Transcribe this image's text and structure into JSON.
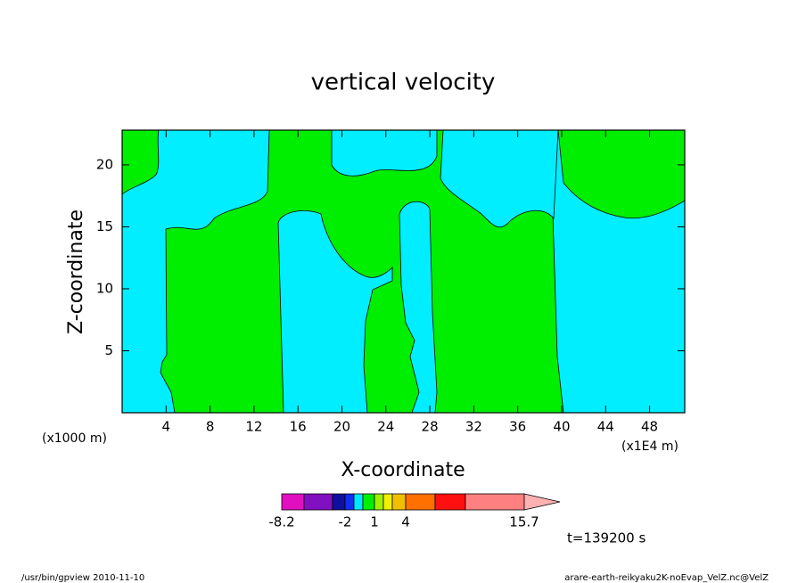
{
  "chart_data": {
    "type": "contour",
    "title": "vertical velocity",
    "xlabel": "X-coordinate",
    "ylabel": "Z-coordinate",
    "x_unit_label": "(x1000 m)",
    "x_scale_label": "(x1E4 m)",
    "xlim": [
      0,
      51.2
    ],
    "xticks": [
      4,
      8,
      12,
      16,
      20,
      24,
      28,
      32,
      36,
      40,
      44,
      48
    ],
    "ylim": [
      0,
      22.8
    ],
    "yticks": [
      5,
      10,
      15,
      20
    ],
    "colorbar": {
      "colors": [
        "#e010c0",
        "#8010c0",
        "#1010a0",
        "#1030f0",
        "#00e8ff",
        "#00f000",
        "#a0f000",
        "#f0f000",
        "#f0c000",
        "#ff7000",
        "#ff1010",
        "#ff8080",
        "#ffb0b0"
      ],
      "ticks": [
        -8.2,
        -2,
        1,
        4,
        15.7
      ]
    },
    "time_label": "t=139200 s",
    "footer_left": "/usr/bin/gpview   2010-11-10",
    "footer_right": "arare-earth-reikyaku2K-noEvap_VelZ.nc@VelZ"
  }
}
